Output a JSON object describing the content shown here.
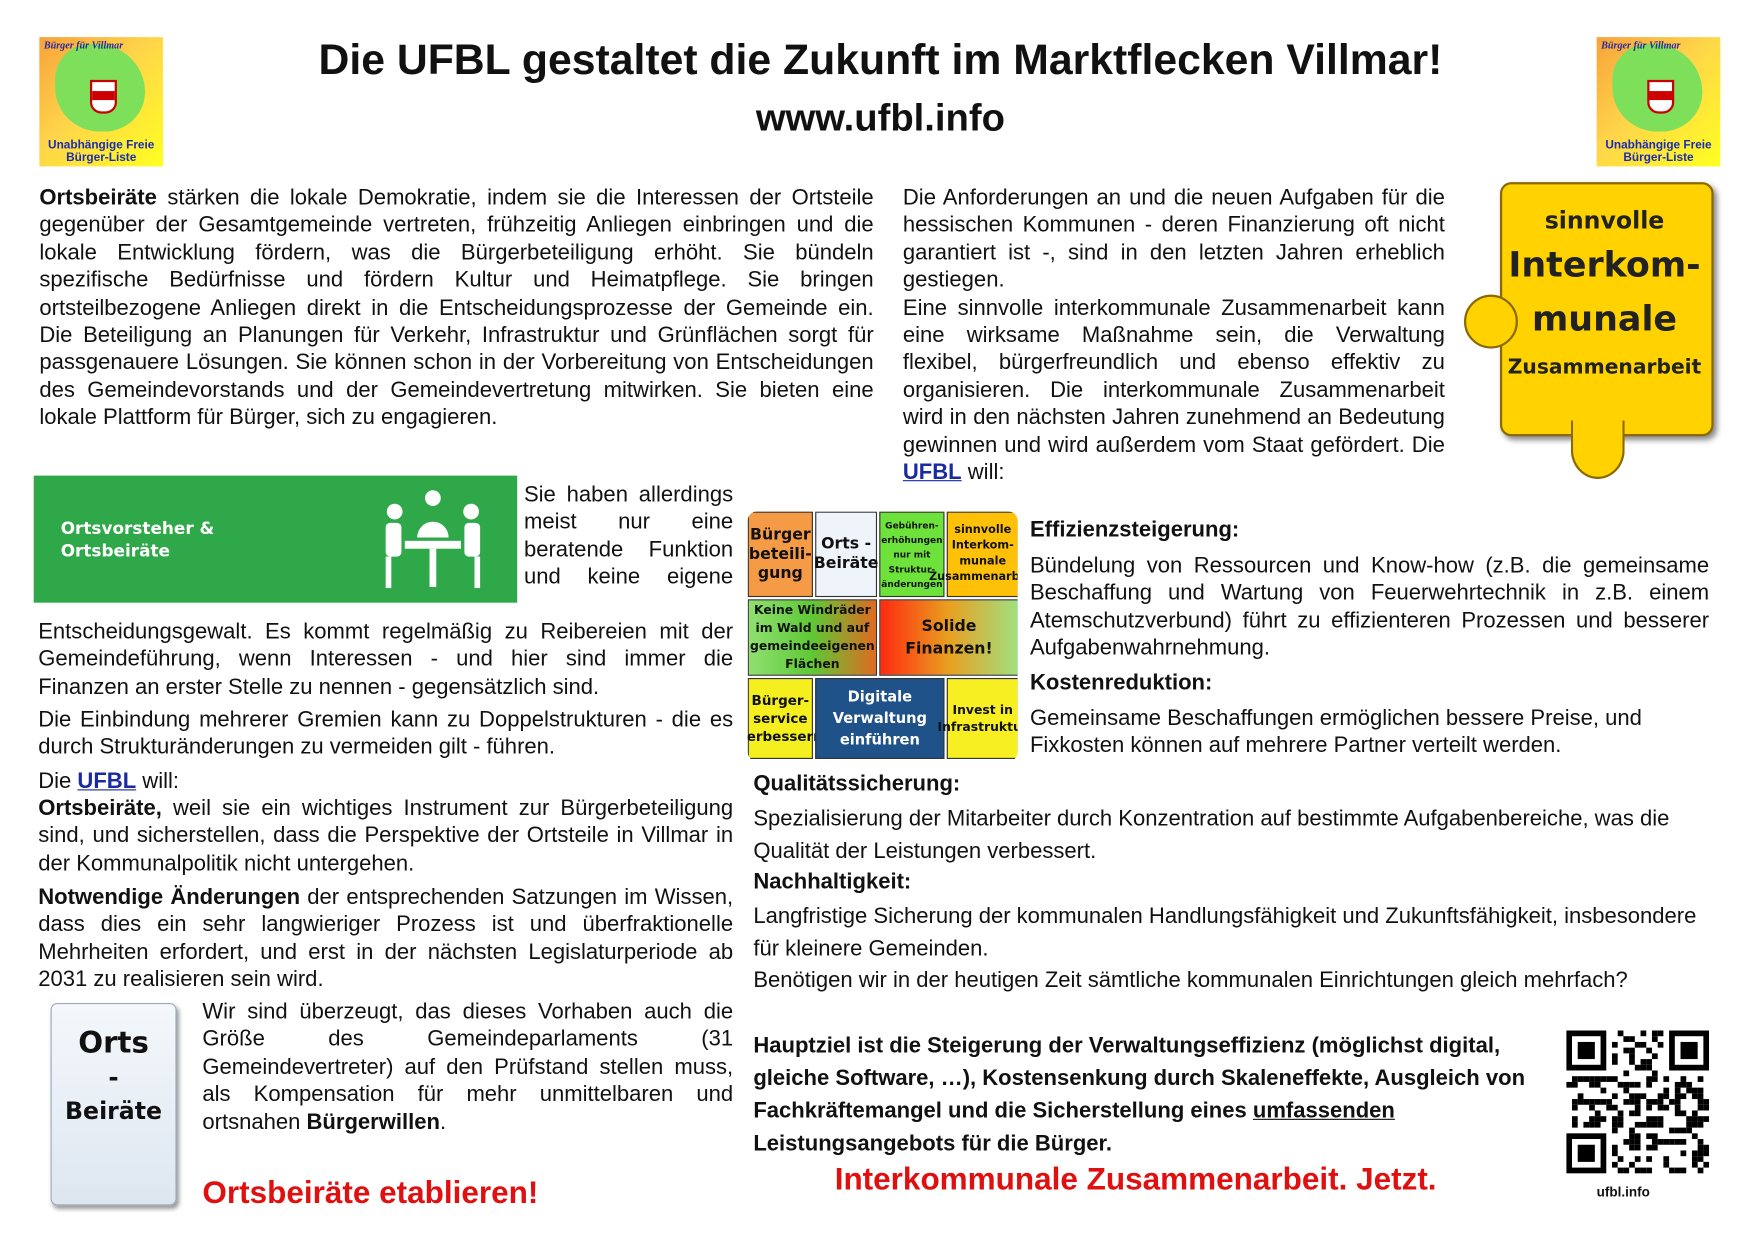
{
  "header": {
    "title": "Die UFBL gestaltet die Zukunft im Marktflecken Villmar!",
    "url": "www.ufbl.info",
    "logo": {
      "top": "Bürger für Villmar",
      "caption1": "Unabhängige Freie",
      "caption2": "Bürger-Liste"
    }
  },
  "left": {
    "p1_bold": "Ortsbeiräte",
    "p1": " stärken die lokale Demokratie, indem sie die Interessen der Ortsteile gegenüber der Gesamtgemeinde vertreten, frühzeitig Anliegen einbringen und die lokale Entwicklung fördern, was die Bürgerbeteiligung erhöht. Sie bündeln spezifische Bedürfnisse und fördern Kultur und Heimatpflege. Sie bringen ortsteilbezogene Anliegen direkt in die Entscheidungsprozesse der Gemeinde ein. Die Beteiligung an Planungen für Verkehr, Infrastruktur und Grünflächen sorgt für passgenauere Lösungen. Sie können schon in der Vorbereitung von Entscheidungen des Gemeindevorstands und der Gemeindevertretung mitwirken. Sie bieten eine lokale Plattform für Bürger, sich zu engagieren.",
    "banner_line1": "Ortsvorsteher &",
    "banner_line2": "Ortsbeiräte",
    "p2": "Sie haben allerdings meist nur eine beratende Funktion und keine eigene Entscheidungsgewalt. Es kommt regelmäßig zu Reibereien mit der Gemeindeführung, wenn Interessen - und hier sind immer die Finanzen an erster Stelle zu nennen - gegensätzlich sind.",
    "p3": "Die Einbindung mehrerer Gremien kann zu Doppelstrukturen - die es durch Strukturänderungen zu vermeiden gilt - führen.",
    "will_prefix": "Die ",
    "will_link": "UFBL",
    "will_suffix": " will:",
    "p4_bold": "Ortsbeiräte,",
    "p4": " weil sie ein wichtiges Instrument zur Bürgerbeteiligung sind, und sicherstellen, dass die Perspektive der Ortsteile in Villmar in der Kommunalpolitik nicht untergehen.",
    "p5_bold": "Notwendige Änderungen",
    "p5": " der entsprechenden Satzungen im Wissen, dass dies ein sehr langwieriger Prozess ist und überfraktionelle Mehrheiten erfordert, und erst in der nächsten Legislaturperiode ab 2031 zu realisieren sein wird.",
    "puzzle_top": "Orts",
    "puzzle_mid": "-",
    "puzzle_bottom": "Beiräte",
    "p6": "Wir sind überzeugt, das dieses Vorhaben auch die Größe des Gemeindeparlaments (31 Gemeindevertreter) auf den Prüfstand stellen muss, als Kompensation für mehr unmittelbaren und ortsnahen ",
    "p6_bold": "Bürgerwillen",
    "p6_end": ".",
    "slogan": "Ortsbeiräte etablieren!"
  },
  "right": {
    "p1": "Die Anforderungen an und die neuen Aufgaben für die hessischen Kommunen - deren Finanzierung oft nicht garantiert ist -, sind in den letzten Jahren erheblich gestiegen.",
    "p2_prefix": "Eine sinnvolle interkommunale Zusammenarbeit kann eine wirksame Maßnahme sein, die Verwaltung flexibel, bürgerfreundlich und ebenso effektiv zu organisieren. Die interkommunale Zusammenarbeit wird in den nächsten Jahren zunehmend an Bedeutung gewinnen und wird außerdem vom Staat gefördert. Die ",
    "p2_link": "UFBL",
    "p2_suffix": " will:",
    "badge": {
      "l1": "sinnvolle",
      "l2": "Interkom-",
      "l3": "munale",
      "l4": "Zusammenarbeit"
    },
    "puzzle": [
      "Bürger beteili- gung",
      "Orts - Beiräte",
      "Gebühren- erhöhungen nur mit Struktur- änderungen",
      "sinnvolle Interkom- munale Zusammenarbeit",
      "Keine Windräder im Wald und auf gemeindeeigenen Flächen",
      "Solide Finanzen!",
      "Bürger- service verbessern",
      "Digitale Verwaltung einführen",
      "Invest in Infrastruktur"
    ],
    "h1": "Effizienzsteigerung:",
    "t1": "Bündelung von Ressourcen und Know-how (z.B. die gemeinsame Beschaffung und Wartung von Feuerwehrtechnik in z.B. einem Atemschutzverbund) führt zu effizienteren Prozessen und besserer Aufgabenwahrnehmung.",
    "h2": "Kostenreduktion:",
    "t2": "Gemeinsame Beschaffungen ermöglichen bessere Preise, und Fixkosten können auf mehrere Partner verteilt werden.",
    "h3": "Qualitätssicherung:",
    "t3": "Spezialisierung der Mitarbeiter durch Konzentration auf bestimmte Aufgabenbereiche, was die Qualität der Leistungen verbessert.",
    "h4": "Nachhaltigkeit:",
    "t4": "Langfristige Sicherung der kommunalen Handlungsfähigkeit und Zukunftsfähigkeit, insbesondere für kleinere Gemeinden.",
    "t5": "Benötigen wir in der heutigen Zeit sämtliche kommunalen Einrichtungen gleich mehrfach?",
    "goal_a": "Hauptziel ist die Steigerung der Verwaltungseffizienz (möglichst digital, gleiche Software, …), Kostensenkung durch Skaleneffekte, Ausgleich von Fachkräftemangel und die Sicherstellung eines ",
    "goal_u": "umfassenden ",
    "goal_b": "Leistungsangebots für die Bürger.",
    "slogan": "Interkommunale Zusammenarbeit. Jetzt.",
    "qr_caption": "ufbl.info"
  },
  "colors": {
    "banner": "#2fa84a",
    "slogan": "#e01010",
    "link": "#1a2aa0",
    "badge": "#ffd200"
  }
}
